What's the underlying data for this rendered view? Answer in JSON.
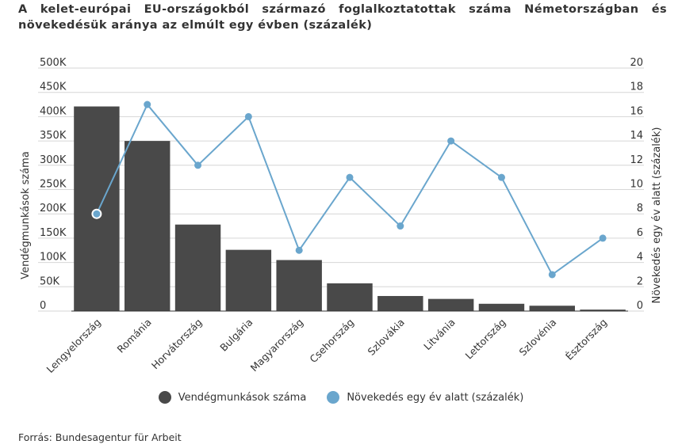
{
  "chart_data": {
    "type": "bar",
    "title": "A kelet-európai EU-országokból származó foglalkoztatottak száma Németországban és növekedésük aránya az elmúlt egy évben (százalék)",
    "categories": [
      "Lengyelország",
      "Románia",
      "Horvátország",
      "Bulgária",
      "Magyarország",
      "Csehország",
      "Szlovákia",
      "Litvánia",
      "Lettország",
      "Szlovénia",
      "Észtország"
    ],
    "series": [
      {
        "name": "Vendégmunkások száma",
        "type": "bar",
        "axis": "left",
        "color": "#494949",
        "values": [
          421000,
          350000,
          178000,
          126000,
          105000,
          57000,
          31000,
          25000,
          15000,
          11000,
          3000
        ]
      },
      {
        "name": "Növekedés egy év alatt (százalék)",
        "type": "line",
        "axis": "right",
        "color": "#6aa6cd",
        "values": [
          8,
          17,
          12,
          16,
          5,
          11,
          7,
          14,
          11,
          3,
          6
        ]
      }
    ],
    "ylabel": "Vendégmunkások száma",
    "ylim": [
      0,
      500000
    ],
    "yticks": [
      "0",
      "50K",
      "100K",
      "150K",
      "200K",
      "250K",
      "300K",
      "350K",
      "400K",
      "450K",
      "500K"
    ],
    "y2label": "Növekedés egy év alatt (százalék)",
    "y2lim": [
      0,
      20
    ],
    "y2ticks": [
      "0",
      "2",
      "4",
      "6",
      "8",
      "10",
      "12",
      "14",
      "16",
      "18",
      "20"
    ],
    "grid": true,
    "legend_position": "bottom",
    "source": "Forrás: Bundesagentur für Arbeit"
  }
}
